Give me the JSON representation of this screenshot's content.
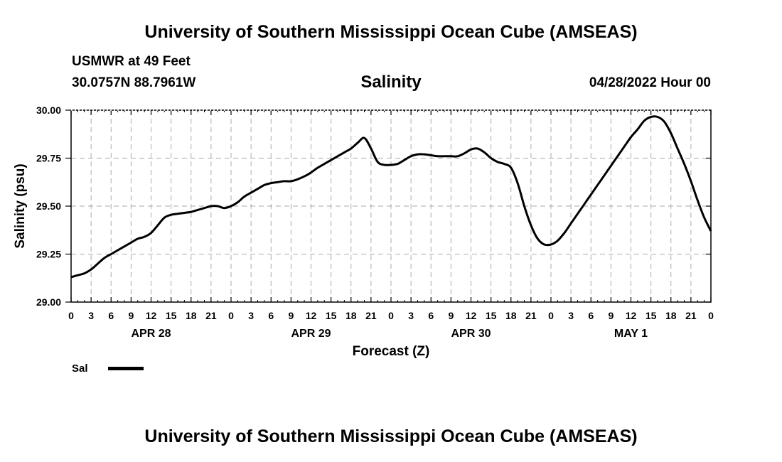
{
  "header": {
    "title_top": "University of Southern Mississippi Ocean Cube (AMSEAS)",
    "station_name": "USMWR at 49 Feet",
    "station_coords": "30.0757N  88.7961W",
    "chart_title": "Salinity",
    "run_time": "04/28/2022 Hour 00"
  },
  "footer": {
    "title_bottom": "University of Southern Mississippi Ocean Cube (AMSEAS)"
  },
  "legend": {
    "label": "Sal"
  },
  "chart_data": {
    "type": "line",
    "title": "Salinity",
    "xlabel": "Forecast (Z)",
    "ylabel": "Salinity (psu)",
    "xlim": [
      0,
      96
    ],
    "ylim": [
      29.0,
      30.0
    ],
    "grid": true,
    "legend_position": "bottom-left",
    "yticks": [
      "29.00",
      "29.25",
      "29.50",
      "29.75",
      "30.00"
    ],
    "ytick_values": [
      29.0,
      29.25,
      29.5,
      29.75,
      30.0
    ],
    "xtick_hours": [
      0,
      3,
      6,
      9,
      12,
      15,
      18,
      21,
      24,
      27,
      30,
      33,
      36,
      39,
      42,
      45,
      48,
      51,
      54,
      57,
      60,
      63,
      66,
      69,
      72,
      75,
      78,
      81,
      84,
      87,
      90,
      93,
      96
    ],
    "xtick_labels": [
      "0",
      "3",
      "6",
      "9",
      "12",
      "15",
      "18",
      "21",
      "0",
      "3",
      "6",
      "9",
      "12",
      "15",
      "18",
      "21",
      "0",
      "3",
      "6",
      "9",
      "12",
      "15",
      "18",
      "21",
      "0",
      "3",
      "6",
      "9",
      "12",
      "15",
      "18",
      "21",
      "0"
    ],
    "day_labels": [
      {
        "label": "APR 28",
        "hour": 12
      },
      {
        "label": "APR 29",
        "hour": 36
      },
      {
        "label": "APR 30",
        "hour": 60
      },
      {
        "label": "MAY 1",
        "hour": 84
      }
    ],
    "series": [
      {
        "name": "Sal",
        "color": "#000000",
        "x": [
          0,
          1,
          2,
          3,
          4,
          5,
          6,
          7,
          8,
          9,
          10,
          11,
          12,
          13,
          14,
          15,
          16,
          17,
          18,
          19,
          20,
          21,
          22,
          23,
          24,
          25,
          26,
          27,
          28,
          29,
          30,
          31,
          32,
          33,
          34,
          35,
          36,
          37,
          38,
          39,
          40,
          41,
          42,
          43,
          44,
          45,
          46,
          47,
          48,
          49,
          50,
          51,
          52,
          53,
          54,
          55,
          56,
          57,
          58,
          59,
          60,
          61,
          62,
          63,
          64,
          65,
          66,
          67,
          68,
          69,
          70,
          71,
          72,
          73,
          74,
          75,
          76,
          77,
          78,
          79,
          80,
          81,
          82,
          83,
          84,
          85,
          86,
          87,
          88,
          89,
          90,
          91,
          92,
          93,
          94,
          95,
          96
        ],
        "values": [
          29.13,
          29.14,
          29.15,
          29.17,
          29.2,
          29.23,
          29.25,
          29.27,
          29.29,
          29.31,
          29.33,
          29.34,
          29.36,
          29.4,
          29.44,
          29.455,
          29.46,
          29.465,
          29.47,
          29.48,
          29.49,
          29.5,
          29.5,
          29.49,
          29.5,
          29.52,
          29.55,
          29.57,
          29.59,
          29.61,
          29.62,
          29.625,
          29.63,
          29.63,
          29.64,
          29.655,
          29.675,
          29.7,
          29.72,
          29.74,
          29.76,
          29.78,
          29.8,
          29.83,
          29.855,
          29.8,
          29.73,
          29.715,
          29.715,
          29.72,
          29.74,
          29.76,
          29.77,
          29.77,
          29.765,
          29.76,
          29.76,
          29.76,
          29.76,
          29.775,
          29.795,
          29.8,
          29.78,
          29.75,
          29.73,
          29.72,
          29.7,
          29.62,
          29.5,
          29.4,
          29.33,
          29.3,
          29.3,
          29.32,
          29.36,
          29.41,
          29.46,
          29.51,
          29.56,
          29.61,
          29.66,
          29.71,
          29.76,
          29.81,
          29.86,
          29.9,
          29.945,
          29.965,
          29.965,
          29.94,
          29.88,
          29.8,
          29.72,
          29.63,
          29.53,
          29.44,
          29.37
        ]
      }
    ]
  }
}
